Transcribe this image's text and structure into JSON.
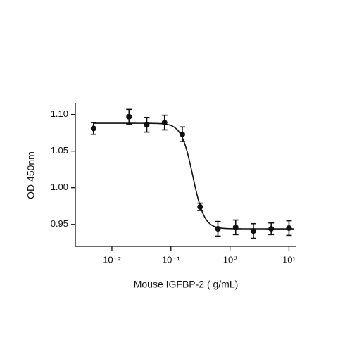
{
  "chart_data": {
    "type": "scatter",
    "x_label": "Mouse IGFBP-2 ( g/mL)",
    "y_label": "OD 450nm",
    "log_x": true,
    "xlim": [
      0.0024,
      13
    ],
    "ylim": [
      0.92,
      1.115
    ],
    "xticks": [
      {
        "value": 0.01,
        "label": "10⁻²"
      },
      {
        "value": 0.1,
        "label": "10⁻¹"
      },
      {
        "value": 1,
        "label": "10⁰"
      },
      {
        "value": 10,
        "label": "10¹"
      }
    ],
    "yticks": [
      {
        "value": 1.1,
        "label": "1.10"
      },
      1.05,
      {
        "value": 1,
        "label": "1.00"
      },
      0.95
    ],
    "color": "#111111",
    "series": [
      {
        "x": [
          0.00488,
          0.0195,
          0.039,
          0.078,
          0.156,
          0.3125,
          0.625,
          1.25,
          2.5,
          5,
          10
        ],
        "values": [
          1.081,
          1.097,
          1.086,
          1.089,
          1.073,
          0.974,
          0.944,
          0.946,
          0.941,
          0.944,
          0.945
        ],
        "errors": [
          0.008,
          0.01,
          0.01,
          0.01,
          0.01,
          0.005,
          0.01,
          0.01,
          0.01,
          0.008,
          0.01
        ]
      }
    ],
    "fit": {
      "top": 1.088,
      "bottom": 0.944,
      "ec50": 0.235,
      "hill": 4.5
    }
  }
}
